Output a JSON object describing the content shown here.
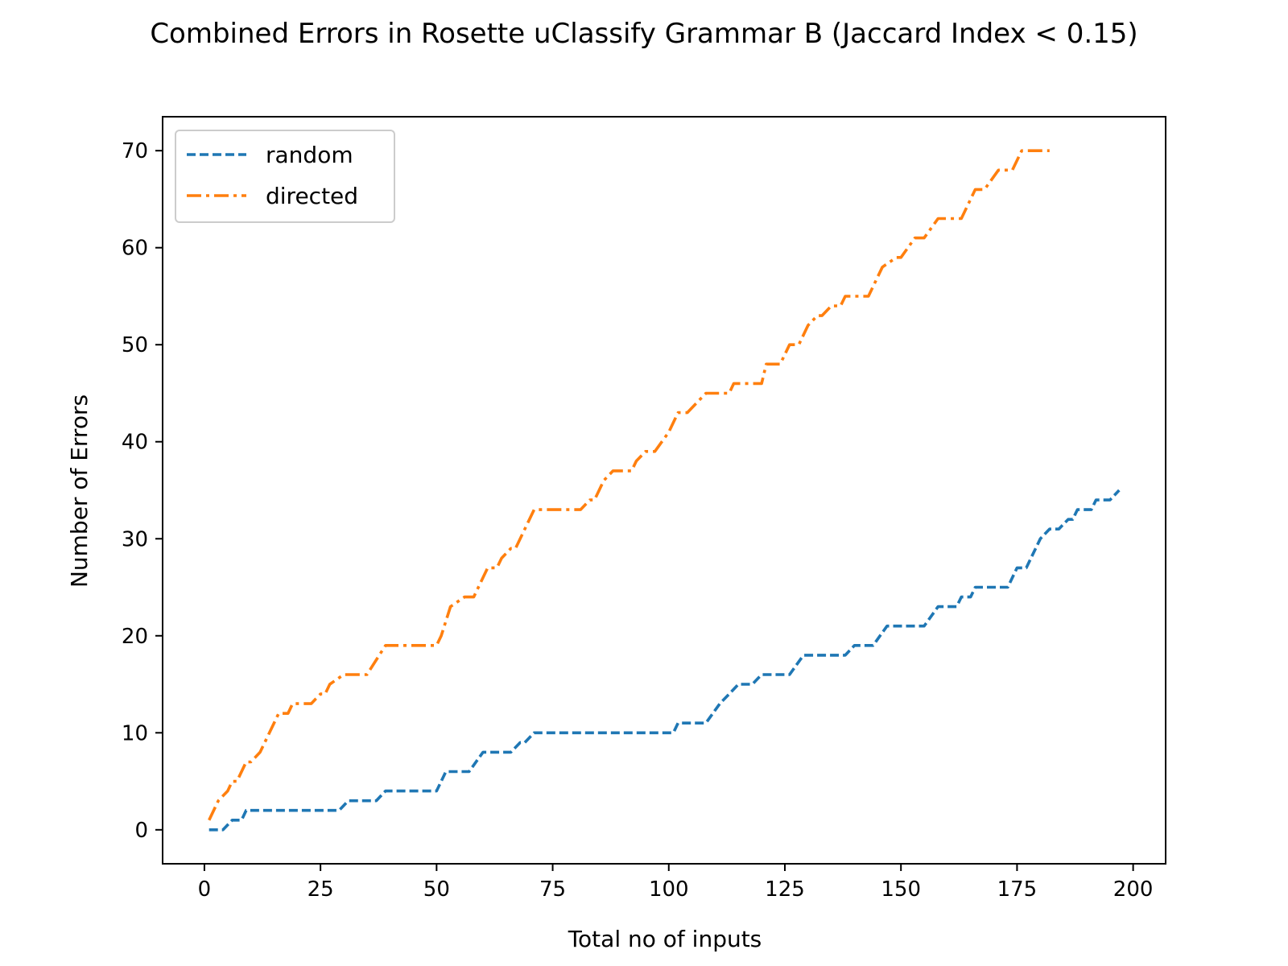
{
  "chart_data": {
    "type": "line",
    "title": "Combined Errors in Rosette uClassify Grammar B (Jaccard Index < 0.15)",
    "xlabel": "Total no of inputs",
    "ylabel": "Number of Errors",
    "xlim": [
      -9,
      207
    ],
    "ylim": [
      -3.5,
      73.5
    ],
    "xticks": [
      0,
      25,
      50,
      75,
      100,
      125,
      150,
      175,
      200
    ],
    "yticks": [
      0,
      10,
      20,
      30,
      40,
      50,
      60,
      70
    ],
    "grid": false,
    "legend_position": "upper left",
    "series": [
      {
        "name": "random",
        "color": "#1f77b4",
        "style": "dashed",
        "points": [
          [
            1,
            0
          ],
          [
            4,
            0
          ],
          [
            6,
            1
          ],
          [
            8,
            1
          ],
          [
            9,
            2
          ],
          [
            29,
            2
          ],
          [
            31,
            3
          ],
          [
            37,
            3
          ],
          [
            39,
            4
          ],
          [
            50,
            4
          ],
          [
            52,
            6
          ],
          [
            57,
            6
          ],
          [
            60,
            8
          ],
          [
            66,
            8
          ],
          [
            68,
            9
          ],
          [
            69,
            9
          ],
          [
            71,
            10
          ],
          [
            101,
            10
          ],
          [
            102,
            11
          ],
          [
            108,
            11
          ],
          [
            111,
            13
          ],
          [
            113,
            14
          ],
          [
            115,
            15
          ],
          [
            118,
            15
          ],
          [
            120,
            16
          ],
          [
            126,
            16
          ],
          [
            129,
            18
          ],
          [
            138,
            18
          ],
          [
            140,
            19
          ],
          [
            144,
            19
          ],
          [
            147,
            21
          ],
          [
            155,
            21
          ],
          [
            158,
            23
          ],
          [
            162,
            23
          ],
          [
            163,
            24
          ],
          [
            165,
            24
          ],
          [
            166,
            25
          ],
          [
            173,
            25
          ],
          [
            175,
            27
          ],
          [
            177,
            27
          ],
          [
            180,
            30
          ],
          [
            182,
            31
          ],
          [
            184,
            31
          ],
          [
            186,
            32
          ],
          [
            187,
            32
          ],
          [
            188,
            33
          ],
          [
            191,
            33
          ],
          [
            192,
            34
          ],
          [
            195,
            34
          ],
          [
            197,
            35
          ]
        ]
      },
      {
        "name": "directed",
        "color": "#ff7f0e",
        "style": "dashdot",
        "points": [
          [
            1,
            1
          ],
          [
            3,
            3
          ],
          [
            5,
            4
          ],
          [
            6,
            5
          ],
          [
            7,
            5
          ],
          [
            9,
            7
          ],
          [
            10,
            7
          ],
          [
            12,
            8
          ],
          [
            16,
            12
          ],
          [
            18,
            12
          ],
          [
            19,
            13
          ],
          [
            23,
            13
          ],
          [
            25,
            14
          ],
          [
            26,
            14
          ],
          [
            27,
            15
          ],
          [
            30,
            16
          ],
          [
            35,
            16
          ],
          [
            39,
            19
          ],
          [
            50,
            19
          ],
          [
            51,
            20
          ],
          [
            53,
            23
          ],
          [
            56,
            24
          ],
          [
            58,
            24
          ],
          [
            61,
            27
          ],
          [
            63,
            27
          ],
          [
            64,
            28
          ],
          [
            66,
            29
          ],
          [
            67,
            29
          ],
          [
            71,
            33
          ],
          [
            81,
            33
          ],
          [
            83,
            34
          ],
          [
            84,
            34
          ],
          [
            86,
            36
          ],
          [
            88,
            37
          ],
          [
            92,
            37
          ],
          [
            93,
            38
          ],
          [
            95,
            39
          ],
          [
            97,
            39
          ],
          [
            100,
            41
          ],
          [
            102,
            43
          ],
          [
            104,
            43
          ],
          [
            108,
            45
          ],
          [
            113,
            45
          ],
          [
            114,
            46
          ],
          [
            120,
            46
          ],
          [
            121,
            48
          ],
          [
            124,
            48
          ],
          [
            126,
            50
          ],
          [
            128,
            50
          ],
          [
            130,
            52
          ],
          [
            132,
            53
          ],
          [
            133,
            53
          ],
          [
            135,
            54
          ],
          [
            137,
            54
          ],
          [
            138,
            55
          ],
          [
            143,
            55
          ],
          [
            146,
            58
          ],
          [
            149,
            59
          ],
          [
            150,
            59
          ],
          [
            153,
            61
          ],
          [
            155,
            61
          ],
          [
            158,
            63
          ],
          [
            163,
            63
          ],
          [
            166,
            66
          ],
          [
            168,
            66
          ],
          [
            171,
            68
          ],
          [
            174,
            68
          ],
          [
            176,
            70
          ],
          [
            182,
            70
          ]
        ]
      }
    ]
  }
}
